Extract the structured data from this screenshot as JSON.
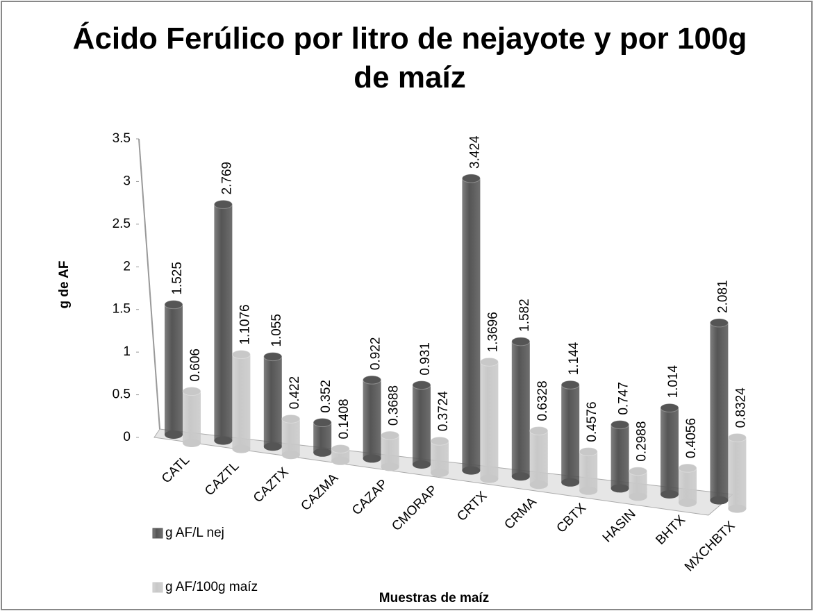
{
  "chart_data": {
    "type": "bar3d",
    "title": "Ácido Ferúlico por litro de nejayote y por 100g de maíz",
    "x_label": "Muestras de maíz",
    "y_label": "g de AF",
    "categories": [
      "CATL",
      "CAZTL",
      "CAZTX",
      "CAZMA",
      "CAZAP",
      "CMORAP",
      "CRTX",
      "CRMA",
      "CBTX",
      "HASIN",
      "BHTX",
      "MXCHBTX"
    ],
    "series": [
      {
        "name": "g AF/L nej",
        "color": "#555555",
        "values": [
          1.525,
          2.769,
          1.055,
          0.352,
          0.922,
          0.931,
          3.424,
          1.582,
          1.144,
          0.747,
          1.014,
          2.081
        ]
      },
      {
        "name": "g AF/100g maíz",
        "color": "#c8c8c8",
        "values": [
          0.606,
          1.1076,
          0.422,
          0.1408,
          0.3688,
          0.3724,
          1.3696,
          0.6328,
          0.4576,
          0.2988,
          0.4056,
          0.8324
        ]
      }
    ],
    "ylim": [
      0,
      3.5
    ],
    "yticks": [
      0,
      0.5,
      1,
      1.5,
      2,
      2.5,
      3,
      3.5
    ],
    "legend": "left"
  }
}
